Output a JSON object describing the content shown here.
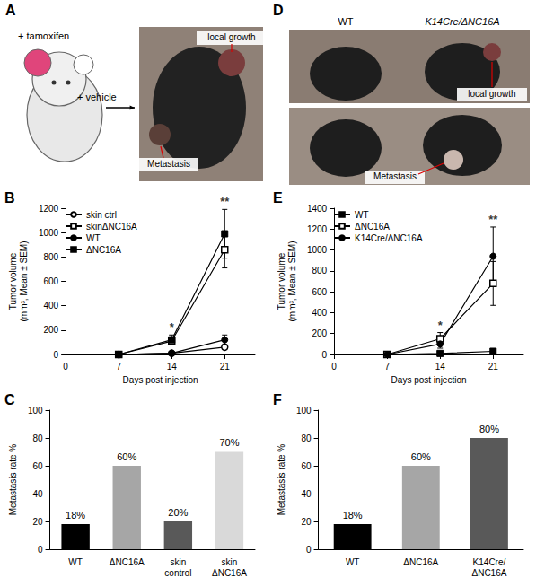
{
  "photo_panels": [
    {
      "letter": "A",
      "labels": [
        "+ tamoxifen",
        "+ vehicle",
        "local growth",
        "Metastasis"
      ]
    },
    {
      "letter": "D",
      "labels": [
        "WT",
        "K14Cre/ΔNC16A",
        "local growth",
        "Metastasis"
      ]
    }
  ],
  "chart_data": [
    {
      "letter": "B",
      "type": "line",
      "x": [
        7,
        14,
        21
      ],
      "xlabel": "Days post injection",
      "ylabel": "Tumor volume (mm³, Mean ± SEM)",
      "xlim": [
        0,
        25
      ],
      "xticks": [
        0,
        7,
        14,
        21
      ],
      "ylim": [
        0,
        1200
      ],
      "yticks": [
        0,
        200,
        400,
        600,
        800,
        1000,
        1200
      ],
      "grid": false,
      "legend": "upper left",
      "series": [
        {
          "name": "skin ctrl",
          "color": "#000000",
          "marker": "open circle",
          "values": [
            0,
            10,
            60
          ],
          "errors": [
            0,
            5,
            20
          ]
        },
        {
          "name": "skinΔNC16A",
          "color": "#000000",
          "marker": "open square",
          "values": [
            0,
            110,
            860
          ],
          "errors": [
            0,
            30,
            150
          ]
        },
        {
          "name": "WT",
          "color": "#000000",
          "marker": "circle",
          "values": [
            0,
            10,
            120
          ],
          "errors": [
            0,
            5,
            40
          ]
        },
        {
          "name": "ΔNC16A",
          "color": "#000000",
          "marker": "square",
          "values": [
            0,
            120,
            990
          ],
          "errors": [
            0,
            40,
            200
          ]
        }
      ],
      "annotations": [
        {
          "text": "*",
          "x": 14
        },
        {
          "text": "**",
          "x": 21
        }
      ]
    },
    {
      "letter": "C",
      "type": "bar",
      "categories": [
        "WT",
        "ΔNC16A",
        "skin control",
        "skin ΔNC16A"
      ],
      "values": [
        18,
        60,
        20,
        70
      ],
      "value_labels": [
        "18%",
        "60%",
        "20%",
        "70%"
      ],
      "colors": [
        "#000000",
        "#a6a6a6",
        "#595959",
        "#d9d9d9"
      ],
      "ylabel": "Metastasis rate %",
      "ylim": [
        0,
        100
      ],
      "yticks": [
        0,
        20,
        40,
        60,
        80,
        100
      ],
      "grid": false,
      "data_labels": true
    },
    {
      "letter": "E",
      "type": "line",
      "x": [
        7,
        14,
        21
      ],
      "xlabel": "Days post injection",
      "ylabel": "Tumor volume (mm³, Mean ± SEM)",
      "xlim": [
        0,
        25
      ],
      "xticks": [
        0,
        7,
        14,
        21
      ],
      "ylim": [
        0,
        1400
      ],
      "yticks": [
        0,
        200,
        400,
        600,
        800,
        1000,
        1200,
        1400
      ],
      "grid": false,
      "legend": "upper left",
      "series": [
        {
          "name": "WT",
          "color": "#000000",
          "marker": "square",
          "values": [
            0,
            10,
            30
          ],
          "errors": [
            0,
            5,
            15
          ]
        },
        {
          "name": "ΔNC16A",
          "color": "#000000",
          "marker": "open square",
          "values": [
            0,
            150,
            680
          ],
          "errors": [
            0,
            60,
            210
          ]
        },
        {
          "name": "K14Cre/ΔNC16A",
          "color": "#000000",
          "marker": "circle",
          "values": [
            0,
            100,
            940
          ],
          "errors": [
            0,
            40,
            280
          ]
        }
      ],
      "annotations": [
        {
          "text": "*",
          "x": 14
        },
        {
          "text": "**",
          "x": 21
        }
      ]
    },
    {
      "letter": "F",
      "type": "bar",
      "categories": [
        "WT",
        "ΔNC16A",
        "K14Cre/ΔNC16A"
      ],
      "values": [
        18,
        60,
        80
      ],
      "value_labels": [
        "18%",
        "60%",
        "80%"
      ],
      "colors": [
        "#000000",
        "#a6a6a6",
        "#595959"
      ],
      "ylabel": "Metastasis rate %",
      "ylim": [
        0,
        100
      ],
      "yticks": [
        0,
        20,
        40,
        60,
        80,
        100
      ],
      "grid": false,
      "data_labels": true
    }
  ]
}
